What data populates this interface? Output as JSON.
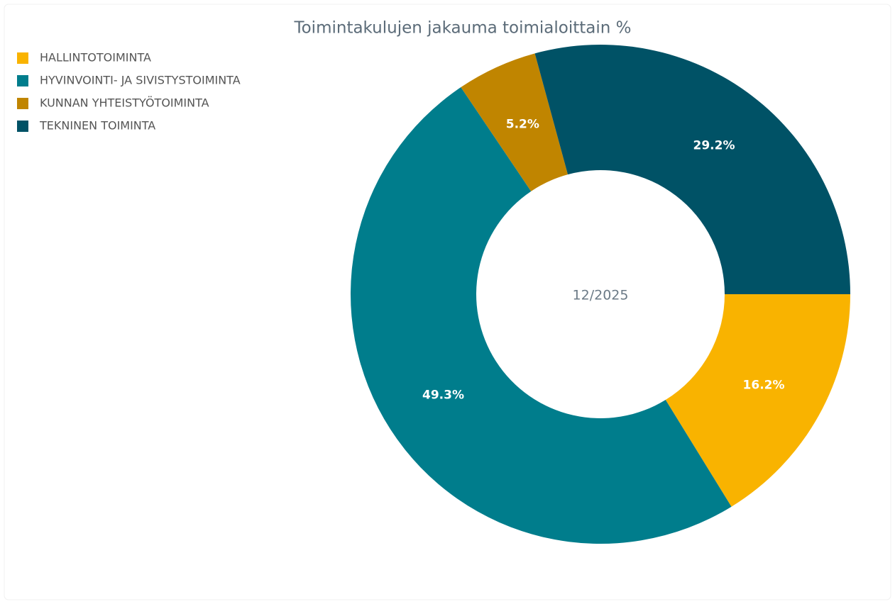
{
  "chart_data": {
    "type": "donut",
    "title": "Toimintakulujen jakauma toimialoittain %",
    "center_label": "12/2025",
    "categories": [
      "HALLINTOTOIMINTA",
      "HYVINVOINTI- JA SIVISTYSTOIMINTA",
      "KUNNAN YHTEISTYÖTOIMINTA",
      "TEKNINEN TOIMINTA"
    ],
    "values": [
      16.2,
      49.3,
      5.2,
      29.2
    ],
    "value_labels": [
      "16.2%",
      "49.3%",
      "5.2%",
      "29.2%"
    ],
    "colors": [
      "#f9b300",
      "#007d8c",
      "#c08500",
      "#005266"
    ]
  }
}
